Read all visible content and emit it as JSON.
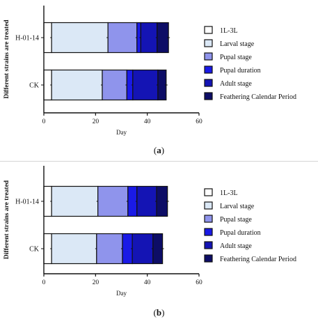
{
  "chart_data": [
    {
      "type": "bar",
      "orientation": "horizontal",
      "stacked": true,
      "panel_label": "a",
      "categories": [
        "H-01-14",
        "CK"
      ],
      "series": [
        {
          "name": "1L-3L",
          "color": "#ffffff",
          "values": [
            3.0,
            3.0
          ]
        },
        {
          "name": "Larval stage",
          "color": "#dbe8f6",
          "values": [
            21.8,
            19.6
          ]
        },
        {
          "name": "Pupal stage",
          "color": "#8f94ec",
          "values": [
            11.2,
            9.5
          ]
        },
        {
          "name": "Pupal duration",
          "color": "#1a1ae6",
          "values": [
            1.5,
            2.3
          ]
        },
        {
          "name": "Adult stage",
          "color": "#1414b4",
          "values": [
            6.3,
            9.7
          ]
        },
        {
          "name": "Feathering Calendar Period",
          "color": "#0d0d66",
          "values": [
            4.4,
            3.2
          ]
        }
      ],
      "xlabel": "Day",
      "ylabel": "Different strains are treated",
      "xlim": [
        0,
        60
      ],
      "xticks": [
        0,
        20,
        40,
        60
      ],
      "legend": "right"
    },
    {
      "type": "bar",
      "orientation": "horizontal",
      "stacked": true,
      "panel_label": "b",
      "categories": [
        "H-01-14",
        "CK"
      ],
      "series": [
        {
          "name": "1L-3L",
          "color": "#ffffff",
          "values": [
            3.0,
            3.0
          ]
        },
        {
          "name": "Larval stage",
          "color": "#dbe8f6",
          "values": [
            17.9,
            17.4
          ]
        },
        {
          "name": "Pupal stage",
          "color": "#8f94ec",
          "values": [
            11.6,
            10.0
          ]
        },
        {
          "name": "Pupal duration",
          "color": "#1a1ae6",
          "values": [
            3.5,
            3.8
          ]
        },
        {
          "name": "Adult stage",
          "color": "#1414b4",
          "values": [
            7.6,
            8.0
          ]
        },
        {
          "name": "Feathering Calendar Period",
          "color": "#0d0d66",
          "values": [
            4.2,
            3.7
          ]
        }
      ],
      "xlabel": "Day",
      "ylabel": "Different strains are treated",
      "xlim": [
        0,
        60
      ],
      "xticks": [
        0,
        20,
        40,
        60
      ],
      "legend": "right"
    }
  ]
}
